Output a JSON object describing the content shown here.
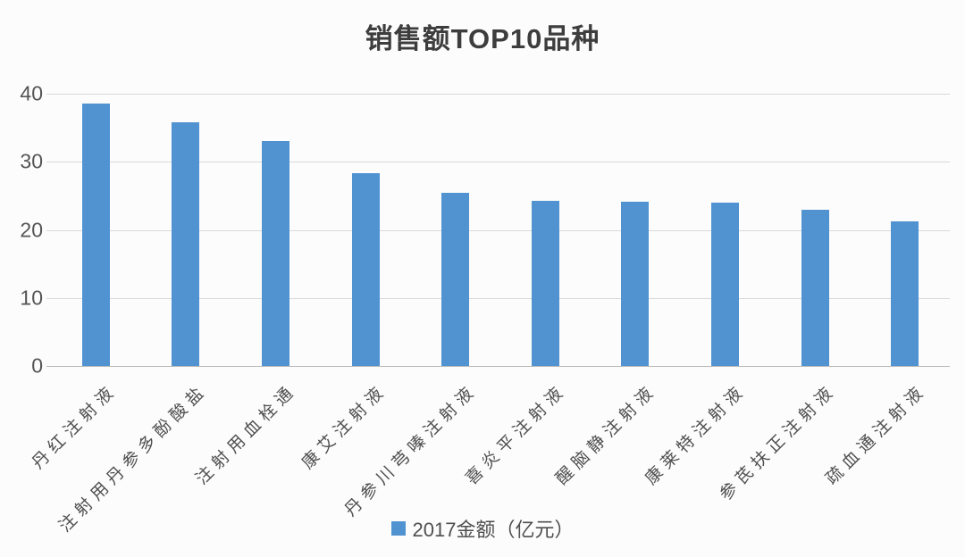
{
  "title": "销售额TOP10品种",
  "colors": {
    "bar": "#5193d1",
    "grid": "#d9d9d9",
    "axis_line": "#b9b9b9",
    "tick_text": "#555555",
    "label_text": "#4f4f4f",
    "title_text": "#3d3d3d"
  },
  "legend": {
    "label": "2017金额（亿元）"
  },
  "chart_data": {
    "type": "bar",
    "title": "销售额TOP10品种",
    "series_name": "2017金额（亿元）",
    "categories": [
      "丹红注射液",
      "注射用丹参多酚酸盐",
      "注射用血栓通",
      "康艾注射液",
      "丹参川芎嗪注射液",
      "喜炎平注射液",
      "醒脑静注射液",
      "康莱特注射液",
      "参芪扶正注射液",
      "疏血通注射液"
    ],
    "values": [
      38.5,
      35.8,
      33.0,
      28.3,
      25.5,
      24.3,
      24.1,
      24.0,
      22.9,
      21.3
    ],
    "xlabel": "",
    "ylabel": "",
    "ylim": [
      0,
      40
    ],
    "yticks": [
      0,
      10,
      20,
      30,
      40
    ],
    "grid": true,
    "legend_position": "bottom"
  }
}
